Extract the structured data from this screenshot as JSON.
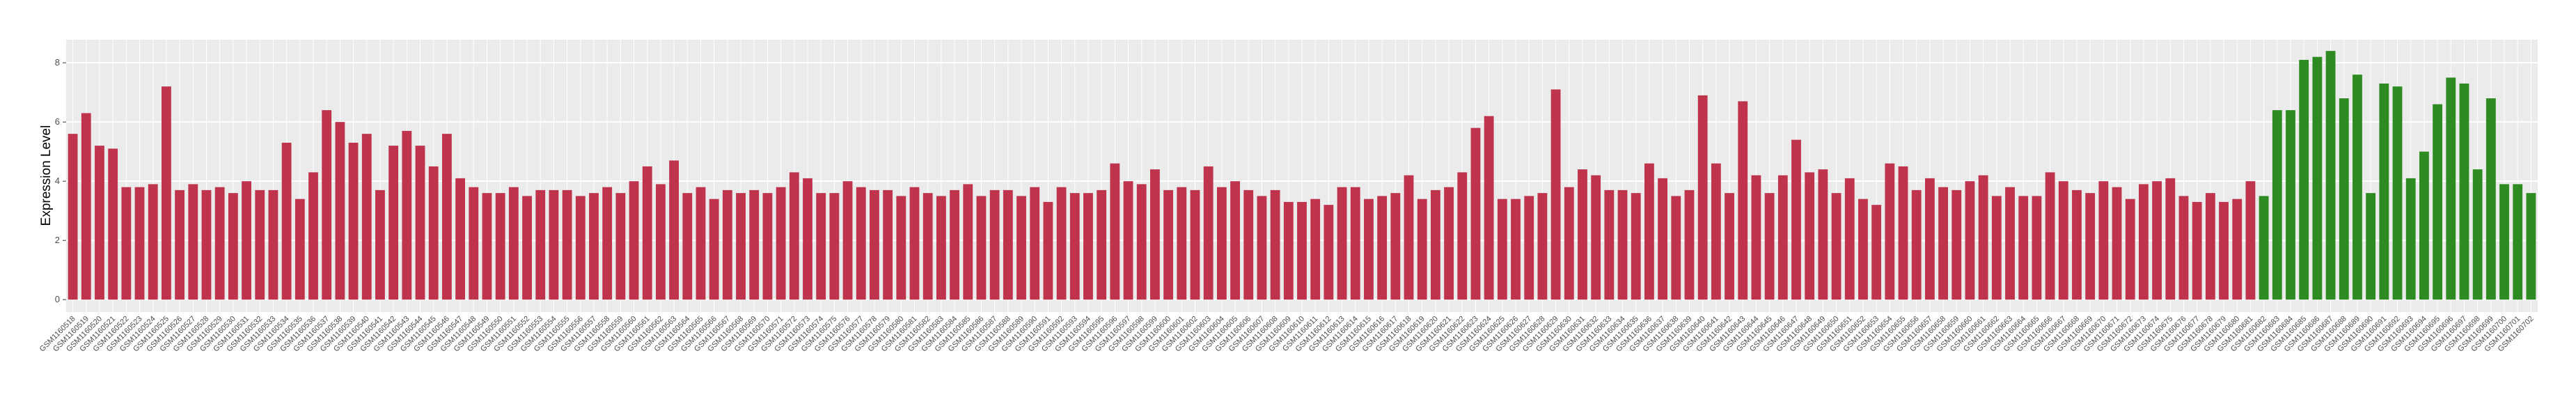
{
  "chart_data": {
    "type": "bar",
    "y_label": "Expression Level",
    "categories": [
      "GSM1160518",
      "GSM1160519",
      "GSM1160520",
      "GSM1160521",
      "GSM1160522",
      "GSM1160523",
      "GSM1160524",
      "GSM1160525",
      "GSM1160526",
      "GSM1160527",
      "GSM1160528",
      "GSM1160529",
      "GSM1160530",
      "GSM1160531",
      "GSM1160532",
      "GSM1160533",
      "GSM1160534",
      "GSM1160535",
      "GSM1160536",
      "GSM1160537",
      "GSM1160538",
      "GSM1160539",
      "GSM1160540",
      "GSM1160541",
      "GSM1160542",
      "GSM1160543",
      "GSM1160544",
      "GSM1160545",
      "GSM1160546",
      "GSM1160547",
      "GSM1160548",
      "GSM1160549",
      "GSM1160550",
      "GSM1160551",
      "GSM1160552",
      "GSM1160553",
      "GSM1160554",
      "GSM1160555",
      "GSM1160556",
      "GSM1160557",
      "GSM1160558",
      "GSM1160559",
      "GSM1160560",
      "GSM1160561",
      "GSM1160562",
      "GSM1160563",
      "GSM1160564",
      "GSM1160565",
      "GSM1160566",
      "GSM1160567",
      "GSM1160568",
      "GSM1160569",
      "GSM1160570",
      "GSM1160571",
      "GSM1160572",
      "GSM1160573",
      "GSM1160574",
      "GSM1160575",
      "GSM1160576",
      "GSM1160577",
      "GSM1160578",
      "GSM1160579",
      "GSM1160580",
      "GSM1160581",
      "GSM1160582",
      "GSM1160583",
      "GSM1160584",
      "GSM1160585",
      "GSM1160586",
      "GSM1160587",
      "GSM1160588",
      "GSM1160589",
      "GSM1160590",
      "GSM1160591",
      "GSM1160592",
      "GSM1160593",
      "GSM1160594",
      "GSM1160595",
      "GSM1160596",
      "GSM1160597",
      "GSM1160598",
      "GSM1160599",
      "GSM1160600",
      "GSM1160601",
      "GSM1160602",
      "GSM1160603",
      "GSM1160604",
      "GSM1160605",
      "GSM1160606",
      "GSM1160607",
      "GSM1160608",
      "GSM1160609",
      "GSM1160610",
      "GSM1160611",
      "GSM1160612",
      "GSM1160613",
      "GSM1160614",
      "GSM1160615",
      "GSM1160616",
      "GSM1160617",
      "GSM1160618",
      "GSM1160619",
      "GSM1160620",
      "GSM1160621",
      "GSM1160622",
      "GSM1160623",
      "GSM1160624",
      "GSM1160625",
      "GSM1160626",
      "GSM1160627",
      "GSM1160628",
      "GSM1160629",
      "GSM1160630",
      "GSM1160631",
      "GSM1160632",
      "GSM1160633",
      "GSM1160634",
      "GSM1160635",
      "GSM1160636",
      "GSM1160637",
      "GSM1160638",
      "GSM1160639",
      "GSM1160640",
      "GSM1160641",
      "GSM1160642",
      "GSM1160643",
      "GSM1160644",
      "GSM1160645",
      "GSM1160646",
      "GSM1160647",
      "GSM1160648",
      "GSM1160649",
      "GSM1160650",
      "GSM1160651",
      "GSM1160652",
      "GSM1160653",
      "GSM1160654",
      "GSM1160655",
      "GSM1160656",
      "GSM1160657",
      "GSM1160658",
      "GSM1160659",
      "GSM1160660",
      "GSM1160661",
      "GSM1160662",
      "GSM1160663",
      "GSM1160664",
      "GSM1160665",
      "GSM1160666",
      "GSM1160667",
      "GSM1160668",
      "GSM1160669",
      "GSM1160670",
      "GSM1160671",
      "GSM1160672",
      "GSM1160673",
      "GSM1160674",
      "GSM1160675",
      "GSM1160676",
      "GSM1160677",
      "GSM1160678",
      "GSM1160679",
      "GSM1160680",
      "GSM1160681",
      "GSM1160682",
      "GSM1160683",
      "GSM1160684",
      "GSM1160685",
      "GSM1160686",
      "GSM1160687",
      "GSM1160688",
      "GSM1160689",
      "GSM1160690",
      "GSM1160691",
      "GSM1160692",
      "GSM1160693",
      "GSM1160694",
      "GSM1160695",
      "GSM1160696",
      "GSM1160697",
      "GSM1160698",
      "GSM1160699",
      "GSM1160700",
      "GSM1160701",
      "GSM1160702"
    ],
    "values": [
      5.6,
      6.3,
      5.2,
      5.1,
      3.8,
      3.8,
      3.9,
      7.2,
      3.7,
      3.9,
      3.7,
      3.8,
      3.6,
      4.0,
      3.7,
      3.7,
      5.3,
      3.4,
      4.3,
      6.4,
      6.0,
      5.3,
      5.6,
      3.7,
      5.2,
      5.7,
      5.2,
      4.5,
      5.6,
      4.1,
      3.8,
      3.6,
      3.6,
      3.8,
      3.5,
      3.7,
      3.7,
      3.7,
      3.5,
      3.6,
      3.8,
      3.6,
      4.0,
      4.5,
      3.9,
      4.7,
      3.6,
      3.8,
      3.4,
      3.7,
      3.6,
      3.7,
      3.6,
      3.8,
      4.3,
      4.1,
      3.6,
      3.6,
      4.0,
      3.8,
      3.7,
      3.7,
      3.5,
      3.8,
      3.6,
      3.5,
      3.7,
      3.9,
      3.5,
      3.7,
      3.7,
      3.5,
      3.8,
      3.3,
      3.8,
      3.6,
      3.6,
      3.7,
      4.6,
      4.0,
      3.9,
      4.4,
      3.7,
      3.8,
      3.7,
      4.5,
      3.8,
      4.0,
      3.7,
      3.5,
      3.7,
      3.3,
      3.3,
      3.4,
      3.2,
      3.8,
      3.8,
      3.4,
      3.5,
      3.6,
      4.2,
      3.4,
      3.7,
      3.8,
      4.3,
      5.8,
      6.2,
      3.4,
      3.4,
      3.5,
      3.6,
      7.1,
      3.8,
      4.4,
      4.2,
      3.7,
      3.7,
      3.6,
      4.6,
      4.1,
      3.5,
      3.7,
      6.9,
      4.6,
      3.6,
      6.7,
      4.2,
      3.6,
      4.2,
      5.4,
      4.3,
      4.4,
      3.6,
      4.1,
      3.4,
      3.2,
      4.6,
      4.5,
      3.7,
      4.1,
      3.8,
      3.7,
      4.0,
      4.2,
      3.5,
      3.8,
      3.5,
      3.5,
      4.3,
      4.0,
      3.7,
      3.6,
      4.0,
      3.8,
      3.4,
      3.9,
      4.0,
      4.1,
      3.5,
      3.3,
      3.6,
      3.3,
      3.4,
      4.0,
      3.5,
      6.4,
      6.4,
      8.1,
      8.2,
      8.4,
      6.8,
      7.6,
      3.6,
      7.3,
      7.2,
      4.1,
      5.0,
      6.6,
      7.5,
      7.3,
      4.4,
      6.8,
      3.9,
      3.9,
      3.6
    ],
    "colors": [
      "#c0334d",
      "#c0334d",
      "#c0334d",
      "#c0334d",
      "#c0334d",
      "#c0334d",
      "#c0334d",
      "#c0334d",
      "#c0334d",
      "#c0334d",
      "#c0334d",
      "#c0334d",
      "#c0334d",
      "#c0334d",
      "#c0334d",
      "#c0334d",
      "#c0334d",
      "#c0334d",
      "#c0334d",
      "#c0334d",
      "#c0334d",
      "#c0334d",
      "#c0334d",
      "#c0334d",
      "#c0334d",
      "#c0334d",
      "#c0334d",
      "#c0334d",
      "#c0334d",
      "#c0334d",
      "#c0334d",
      "#c0334d",
      "#c0334d",
      "#c0334d",
      "#c0334d",
      "#c0334d",
      "#c0334d",
      "#c0334d",
      "#c0334d",
      "#c0334d",
      "#c0334d",
      "#c0334d",
      "#c0334d",
      "#c0334d",
      "#c0334d",
      "#c0334d",
      "#c0334d",
      "#c0334d",
      "#c0334d",
      "#c0334d",
      "#c0334d",
      "#c0334d",
      "#c0334d",
      "#c0334d",
      "#c0334d",
      "#c0334d",
      "#c0334d",
      "#c0334d",
      "#c0334d",
      "#c0334d",
      "#c0334d",
      "#c0334d",
      "#c0334d",
      "#c0334d",
      "#c0334d",
      "#c0334d",
      "#c0334d",
      "#c0334d",
      "#c0334d",
      "#c0334d",
      "#c0334d",
      "#c0334d",
      "#c0334d",
      "#c0334d",
      "#c0334d",
      "#c0334d",
      "#c0334d",
      "#c0334d",
      "#c0334d",
      "#c0334d",
      "#c0334d",
      "#c0334d",
      "#c0334d",
      "#c0334d",
      "#c0334d",
      "#c0334d",
      "#c0334d",
      "#c0334d",
      "#c0334d",
      "#c0334d",
      "#c0334d",
      "#c0334d",
      "#c0334d",
      "#c0334d",
      "#c0334d",
      "#c0334d",
      "#c0334d",
      "#c0334d",
      "#c0334d",
      "#c0334d",
      "#c0334d",
      "#c0334d",
      "#c0334d",
      "#c0334d",
      "#c0334d",
      "#c0334d",
      "#c0334d",
      "#c0334d",
      "#c0334d",
      "#c0334d",
      "#c0334d",
      "#c0334d",
      "#c0334d",
      "#c0334d",
      "#c0334d",
      "#c0334d",
      "#c0334d",
      "#c0334d",
      "#c0334d",
      "#c0334d",
      "#c0334d",
      "#c0334d",
      "#c0334d",
      "#c0334d",
      "#c0334d",
      "#c0334d",
      "#c0334d",
      "#c0334d",
      "#c0334d",
      "#c0334d",
      "#c0334d",
      "#c0334d",
      "#c0334d",
      "#c0334d",
      "#c0334d",
      "#c0334d",
      "#c0334d",
      "#c0334d",
      "#c0334d",
      "#c0334d",
      "#c0334d",
      "#c0334d",
      "#c0334d",
      "#c0334d",
      "#c0334d",
      "#c0334d",
      "#c0334d",
      "#c0334d",
      "#c0334d",
      "#c0334d",
      "#c0334d",
      "#c0334d",
      "#c0334d",
      "#c0334d",
      "#c0334d",
      "#c0334d",
      "#c0334d",
      "#c0334d",
      "#c0334d",
      "#c0334d",
      "#c0334d",
      "#c0334d",
      "#c0334d",
      "#c0334d",
      "#2e8b22",
      "#2e8b22",
      "#2e8b22",
      "#2e8b22",
      "#2e8b22",
      "#2e8b22",
      "#2e8b22",
      "#2e8b22",
      "#2e8b22",
      "#2e8b22",
      "#2e8b22",
      "#2e8b22",
      "#2e8b22",
      "#2e8b22",
      "#2e8b22",
      "#2e8b22",
      "#2e8b22",
      "#2e8b22",
      "#2e8b22",
      "#2e8b22",
      "#2e8b22",
      "#2e8b22",
      "#2e8b22"
    ],
    "ylim": [
      -0.42,
      8.78
    ],
    "yticks": [
      0,
      2,
      4,
      6,
      8
    ],
    "grid": true
  }
}
